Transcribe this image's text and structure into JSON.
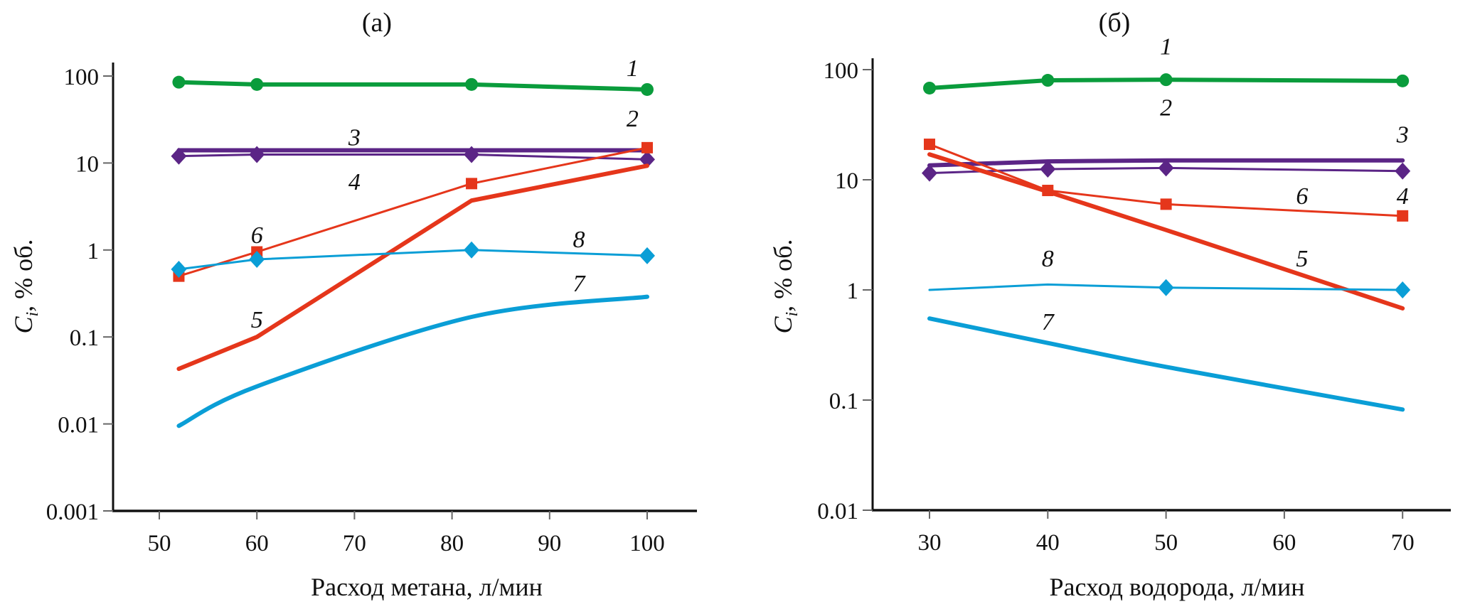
{
  "colors": {
    "green": "#0a9c3c",
    "purple": "#5b2586",
    "red": "#e5361b",
    "cyan": "#0a9ed6",
    "axis": "#111111"
  },
  "chart_data": [
    {
      "type": "line",
      "title": "(a)",
      "xlabel": "Расход метана, л/мин",
      "ylabel": "C_i, % об.",
      "ylabel_main": "C",
      "ylabel_sub": "i",
      "ylabel_rest": ", % об.",
      "yscale": "log",
      "xlim": [
        45,
        105
      ],
      "ylim": [
        0.001,
        100
      ],
      "xticks": [
        50,
        60,
        70,
        80,
        90,
        100
      ],
      "xtick_labels": [
        "50",
        "60",
        "70",
        "80",
        "90",
        "100"
      ],
      "yticks": [
        100,
        10,
        1,
        0.1,
        0.01,
        0.001
      ],
      "ytick_labels": [
        "100",
        "10",
        "1",
        "0.1",
        "0.01",
        "0.001"
      ],
      "grid": false,
      "legend": "inline curve numbers",
      "x": [
        52,
        60,
        82,
        100
      ],
      "series": [
        {
          "name": "1",
          "color": "green",
          "weight": "thick",
          "marker": "circle",
          "values": [
            85,
            80,
            80,
            70
          ]
        },
        {
          "name": "3",
          "color": "purple",
          "weight": "thick",
          "marker": "none",
          "values": [
            14,
            14,
            14,
            14
          ]
        },
        {
          "name": "4",
          "color": "purple",
          "weight": "thin",
          "marker": "diamond",
          "values": [
            12,
            12.5,
            12.5,
            11
          ]
        },
        {
          "name": "6",
          "color": "red",
          "weight": "thin",
          "marker": "square",
          "values": [
            0.5,
            0.95,
            5.8,
            15
          ]
        },
        {
          "name": "5",
          "color": "red",
          "weight": "thick",
          "marker": "none",
          "values": [
            0.043,
            0.1,
            3.7,
            9.3
          ]
        },
        {
          "name": "8",
          "color": "cyan",
          "weight": "thin",
          "marker": "diamond",
          "values": [
            0.6,
            0.78,
            1.0,
            0.86
          ]
        },
        {
          "name": "7",
          "color": "cyan",
          "weight": "thick",
          "marker": "none",
          "smooth": true,
          "values": [
            0.0095,
            0.027,
            0.17,
            0.29
          ]
        }
      ],
      "curve_labels": [
        {
          "text": "1",
          "x": 98.5,
          "y": 125
        },
        {
          "text": "2",
          "x": 98.5,
          "y": 33
        },
        {
          "text": "3",
          "x": 70,
          "y": 20
        },
        {
          "text": "4",
          "x": 70,
          "y": 6.2
        },
        {
          "text": "6",
          "x": 60,
          "y": 1.5
        },
        {
          "text": "5",
          "x": 60,
          "y": 0.16
        },
        {
          "text": "8",
          "x": 93,
          "y": 1.35
        },
        {
          "text": "7",
          "x": 93,
          "y": 0.42
        }
      ]
    },
    {
      "type": "line",
      "title": "(б)",
      "xlabel": "Расход водорода, л/мин",
      "ylabel": "C_i, % об.",
      "ylabel_main": "C",
      "ylabel_sub": "i",
      "ylabel_rest": ", % об.",
      "yscale": "log",
      "xlim": [
        25.5,
        73
      ],
      "ylim": [
        0.01,
        100
      ],
      "xticks": [
        30,
        40,
        50,
        60,
        70
      ],
      "xtick_labels": [
        "30",
        "40",
        "50",
        "60",
        "70"
      ],
      "yticks": [
        100,
        10,
        1,
        0.1,
        0.01
      ],
      "ytick_labels": [
        "100",
        "10",
        "1",
        "0.1",
        "0.01"
      ],
      "grid": false,
      "legend": "inline curve numbers",
      "x": [
        30,
        40,
        50,
        70
      ],
      "series": [
        {
          "name": "1",
          "color": "green",
          "weight": "thick",
          "marker": "circle",
          "values": [
            68,
            80,
            81,
            79
          ]
        },
        {
          "name": "3",
          "color": "purple",
          "weight": "thick",
          "marker": "none",
          "values": [
            13.5,
            14.7,
            15,
            15
          ]
        },
        {
          "name": "4",
          "color": "purple",
          "weight": "thin",
          "marker": "diamond",
          "values": [
            11.5,
            12.5,
            12.8,
            12
          ]
        },
        {
          "name": "6",
          "color": "red",
          "weight": "thin",
          "marker": "square",
          "values": [
            21,
            8,
            6,
            4.7
          ]
        },
        {
          "name": "5",
          "color": "red",
          "weight": "thick",
          "marker": "none",
          "values": [
            17,
            7.8,
            3.5,
            0.68
          ]
        },
        {
          "name": "8",
          "color": "cyan",
          "weight": "thin",
          "marker": "diamond",
          "marker_at": [
            50,
            70
          ],
          "values": [
            1.0,
            1.12,
            1.05,
            1.0
          ]
        },
        {
          "name": "7",
          "color": "cyan",
          "weight": "thick",
          "marker": "none",
          "smooth": true,
          "values": [
            0.55,
            0.33,
            0.2,
            0.082
          ]
        }
      ],
      "curve_labels": [
        {
          "text": "1",
          "x": 50,
          "y": 165
        },
        {
          "text": "2",
          "x": 50,
          "y": 46
        },
        {
          "text": "3",
          "x": 70,
          "y": 26
        },
        {
          "text": "4",
          "x": 70,
          "y": 7.2
        },
        {
          "text": "6",
          "x": 61.5,
          "y": 7.2
        },
        {
          "text": "5",
          "x": 61.5,
          "y": 1.95
        },
        {
          "text": "8",
          "x": 40,
          "y": 1.95
        },
        {
          "text": "7",
          "x": 40,
          "y": 0.52
        }
      ]
    }
  ]
}
